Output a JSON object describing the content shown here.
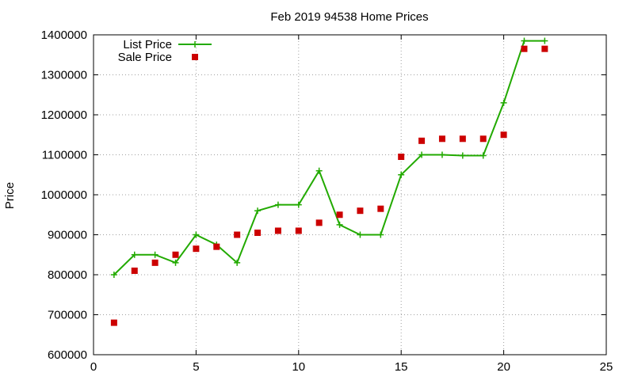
{
  "chart_data": {
    "type": "line",
    "title": "Feb 2019 94538 Home Prices",
    "xlabel": "",
    "ylabel": "Price",
    "xlim": [
      0,
      25
    ],
    "ylim": [
      600000,
      1400000
    ],
    "xticks": [
      0,
      5,
      10,
      15,
      20,
      25
    ],
    "yticks": [
      600000,
      700000,
      800000,
      900000,
      1000000,
      1100000,
      1200000,
      1300000,
      1400000
    ],
    "grid": true,
    "legend_position": "top-left",
    "series": [
      {
        "name": "List Price",
        "style": "line+cross",
        "color": "#22aa00",
        "x": [
          1,
          2,
          3,
          4,
          5,
          6,
          7,
          8,
          9,
          10,
          11,
          12,
          13,
          14,
          15,
          16,
          17,
          18,
          19,
          20,
          21,
          22
        ],
        "y": [
          800000,
          850000,
          850000,
          830000,
          900000,
          875000,
          830000,
          960000,
          975000,
          975000,
          1060000,
          925000,
          900000,
          900000,
          1050000,
          1100000,
          1100000,
          1098000,
          1098000,
          1230000,
          1385000,
          1385000
        ]
      },
      {
        "name": "Sale Price",
        "style": "square",
        "color": "#cc0000",
        "x": [
          1,
          2,
          3,
          4,
          5,
          6,
          7,
          8,
          9,
          10,
          11,
          12,
          13,
          14,
          15,
          16,
          17,
          18,
          19,
          20,
          21,
          22
        ],
        "y": [
          680000,
          810000,
          830000,
          850000,
          865000,
          870000,
          900000,
          905000,
          910000,
          910000,
          930000,
          950000,
          960000,
          965000,
          1095000,
          1135000,
          1140000,
          1140000,
          1140000,
          1150000,
          1365000,
          1365000
        ]
      }
    ]
  }
}
